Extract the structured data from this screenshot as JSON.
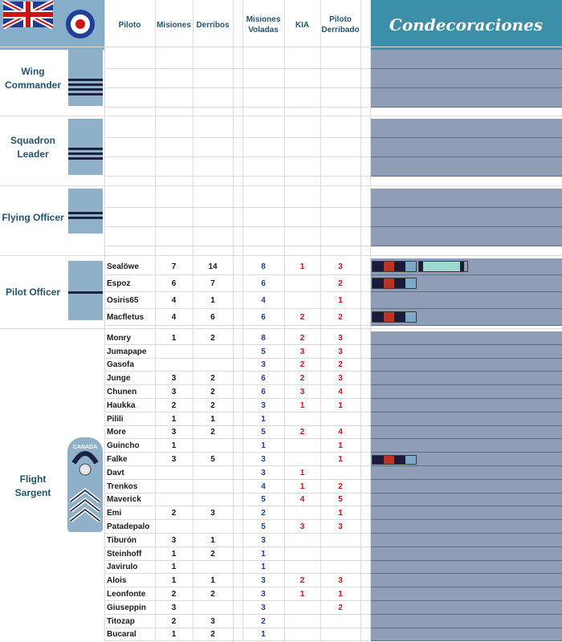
{
  "header": {
    "columns": [
      "Piloto",
      "Misiones",
      "Derribos",
      "Misiones Voladas",
      "KIA",
      "Piloto Derribado"
    ],
    "decorations_title": "Condecoraciones"
  },
  "colors": {
    "header_bg": "#ffffff",
    "header_text": "#22546f",
    "decorations_header_bg": "#3b8fa8",
    "decorations_panel": "#8f9db7",
    "rank_text": "#22546f",
    "sleeve_cloth": "#8eb0c8",
    "flown_missions": "#1f3f99",
    "losses_red": "#cc1414"
  },
  "ranks": [
    {
      "label": "Wing Commander",
      "insignia": "sleeve-stripes-4",
      "pilots": []
    },
    {
      "label": "Squadron Leader",
      "insignia": "sleeve-stripes-3",
      "pilots": []
    },
    {
      "label": "Flying Officer",
      "insignia": "sleeve-stripes-2",
      "pilots": []
    },
    {
      "label": "Pilot Officer",
      "insignia": "sleeve-stripes-1",
      "pilots": [
        {
          "name": "Sealöwe",
          "missions": "7",
          "kills": "14",
          "flown": "8",
          "kia": "1",
          "downed": "3",
          "ribbons": [
            "dfc",
            "dfm"
          ]
        },
        {
          "name": "Espoz",
          "missions": "6",
          "kills": "7",
          "flown": "6",
          "kia": "",
          "downed": "2",
          "ribbons": [
            "dfc"
          ]
        },
        {
          "name": "Osiris65",
          "missions": "4",
          "kills": "1",
          "flown": "4",
          "kia": "",
          "downed": "1",
          "ribbons": []
        },
        {
          "name": "Macfletus",
          "missions": "4",
          "kills": "6",
          "flown": "6",
          "kia": "2",
          "downed": "2",
          "ribbons": [
            "dfc"
          ]
        }
      ]
    },
    {
      "label": "Flight Sargent",
      "insignia": "canada-sergeant-chevrons",
      "badge_text": "CANADA",
      "pilots": [
        {
          "name": "Monry",
          "missions": "1",
          "kills": "2",
          "flown": "8",
          "kia": "2",
          "downed": "3",
          "ribbons": []
        },
        {
          "name": "Jumapape",
          "missions": "",
          "kills": "",
          "flown": "5",
          "kia": "3",
          "downed": "3",
          "ribbons": []
        },
        {
          "name": "Gasofa",
          "missions": "",
          "kills": "",
          "flown": "3",
          "kia": "2",
          "downed": "2",
          "ribbons": []
        },
        {
          "name": "Junge",
          "missions": "3",
          "kills": "2",
          "flown": "6",
          "kia": "2",
          "downed": "3",
          "ribbons": []
        },
        {
          "name": "Chunen",
          "missions": "3",
          "kills": "2",
          "flown": "6",
          "kia": "3",
          "downed": "4",
          "ribbons": []
        },
        {
          "name": "Haukka",
          "missions": "2",
          "kills": "2",
          "flown": "3",
          "kia": "1",
          "downed": "1",
          "ribbons": []
        },
        {
          "name": "Pilili",
          "missions": "1",
          "kills": "1",
          "flown": "1",
          "kia": "",
          "downed": "",
          "ribbons": []
        },
        {
          "name": "More",
          "missions": "3",
          "kills": "2",
          "flown": "5",
          "kia": "2",
          "downed": "4",
          "ribbons": []
        },
        {
          "name": "Guincho",
          "missions": "1",
          "kills": "",
          "flown": "1",
          "kia": "",
          "downed": "1",
          "ribbons": []
        },
        {
          "name": "Falke",
          "missions": "3",
          "kills": "5",
          "flown": "3",
          "kia": "",
          "downed": "1",
          "ribbons": [
            "dfc"
          ]
        },
        {
          "name": "Davt",
          "missions": "",
          "kills": "",
          "flown": "3",
          "kia": "1",
          "downed": "",
          "ribbons": []
        },
        {
          "name": "Trenkos",
          "missions": "",
          "kills": "",
          "flown": "4",
          "kia": "1",
          "downed": "2",
          "ribbons": []
        },
        {
          "name": "Maverick",
          "missions": "",
          "kills": "",
          "flown": "5",
          "kia": "4",
          "downed": "5",
          "ribbons": []
        },
        {
          "name": "Emi",
          "missions": "2",
          "kills": "3",
          "flown": "2",
          "kia": "",
          "downed": "1",
          "ribbons": []
        },
        {
          "name": "Patadepalo",
          "missions": "",
          "kills": "",
          "flown": "5",
          "kia": "3",
          "downed": "3",
          "ribbons": []
        },
        {
          "name": "Tiburón",
          "missions": "3",
          "kills": "1",
          "flown": "3",
          "kia": "",
          "downed": "",
          "ribbons": []
        },
        {
          "name": "Steinhoff",
          "missions": "1",
          "kills": "2",
          "flown": "1",
          "kia": "",
          "downed": "",
          "ribbons": []
        },
        {
          "name": "Javirulo",
          "missions": "1",
          "kills": "",
          "flown": "1",
          "kia": "",
          "downed": "",
          "ribbons": []
        },
        {
          "name": "Alois",
          "missions": "1",
          "kills": "1",
          "flown": "3",
          "kia": "2",
          "downed": "3",
          "ribbons": []
        },
        {
          "name": "Leonfonte",
          "missions": "2",
          "kills": "2",
          "flown": "3",
          "kia": "1",
          "downed": "1",
          "ribbons": []
        },
        {
          "name": "Giuseppin",
          "missions": "3",
          "kills": "",
          "flown": "3",
          "kia": "",
          "downed": "2",
          "ribbons": []
        },
        {
          "name": "Titozap",
          "missions": "2",
          "kills": "3",
          "flown": "2",
          "kia": "",
          "downed": "",
          "ribbons": []
        },
        {
          "name": "Bucaral",
          "missions": "1",
          "kills": "2",
          "flown": "1",
          "kia": "",
          "downed": "",
          "ribbons": []
        }
      ]
    }
  ]
}
